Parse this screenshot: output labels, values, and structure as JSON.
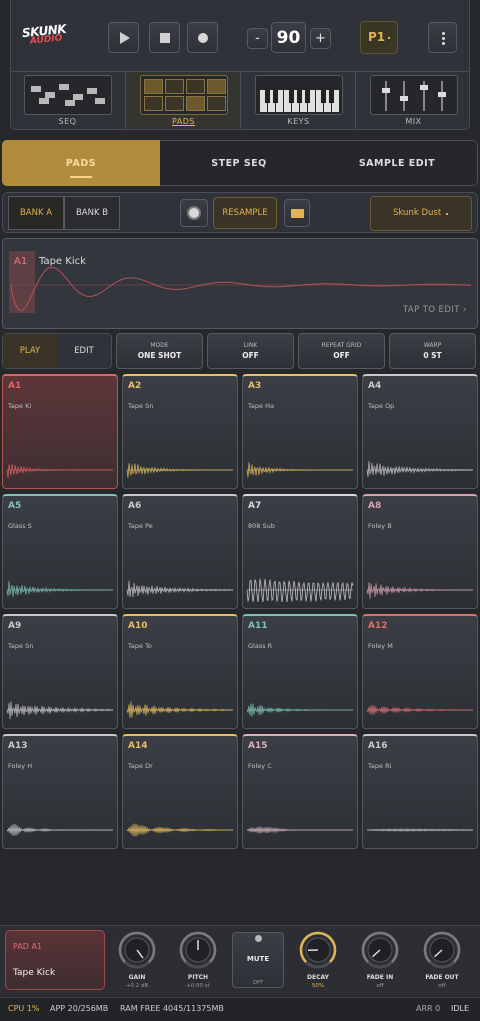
{
  "header": {
    "logo_top": "SKUNK",
    "logo_bottom": "AUDIO",
    "minus": "-",
    "tempo": "90",
    "plus": "+",
    "pattern": "P1"
  },
  "views": [
    "SEQ",
    "PADS",
    "KEYS",
    "MIX"
  ],
  "tabs": [
    "PADS",
    "STEP SEQ",
    "SAMPLE EDIT"
  ],
  "banks": [
    "BANK A",
    "BANK B"
  ],
  "resample": "RESAMPLE",
  "kit": "Skunk Dust",
  "waveform": {
    "pad": "A1",
    "name": "Tape Kick",
    "hint": "TAP TO EDIT ›"
  },
  "modes": [
    "PLAY",
    "EDIT"
  ],
  "params": [
    {
      "label": "MODE",
      "value": "ONE SHOT"
    },
    {
      "label": "LINK",
      "value": "OFF"
    },
    {
      "label": "REPEAT GRID",
      "value": "OFF"
    },
    {
      "label": "WARP",
      "value": "0 ST"
    }
  ],
  "pads": [
    {
      "id": "A1",
      "name": "Tape Ki",
      "color": "#e06565"
    },
    {
      "id": "A2",
      "name": "Tape Sn",
      "color": "#e8c062"
    },
    {
      "id": "A3",
      "name": "Tape Ha",
      "color": "#e8c062"
    },
    {
      "id": "A4",
      "name": "Tape Op",
      "color": "#c9c9c9"
    },
    {
      "id": "A5",
      "name": "Glass S",
      "color": "#7ec4b6"
    },
    {
      "id": "A6",
      "name": "Tape Pe",
      "color": "#c9c9c9"
    },
    {
      "id": "A7",
      "name": "808 Sub",
      "color": "#d8d8d8"
    },
    {
      "id": "A8",
      "name": "Foley B",
      "color": "#d9a2b2"
    },
    {
      "id": "A9",
      "name": "Tape Sn",
      "color": "#c9c9c9"
    },
    {
      "id": "A10",
      "name": "Tape To",
      "color": "#e8c062"
    },
    {
      "id": "A11",
      "name": "Glass R",
      "color": "#7ec4b6"
    },
    {
      "id": "A12",
      "name": "Foley M",
      "color": "#e07070"
    },
    {
      "id": "A13",
      "name": "Foley H",
      "color": "#c9c9c9"
    },
    {
      "id": "A14",
      "name": "Tape Dr",
      "color": "#e8c062"
    },
    {
      "id": "A15",
      "name": "Foley C",
      "color": "#d9b2bc"
    },
    {
      "id": "A16",
      "name": "Tape Ri",
      "color": "#c9c9c9"
    }
  ],
  "selected": {
    "pad": "PAD A1",
    "name": "Tape Kick"
  },
  "knobs": [
    {
      "label": "GAIN",
      "value": "+0.2 dB"
    },
    {
      "label": "PITCH",
      "value": "+0.00 st"
    },
    {
      "label": "MUTE",
      "value": "OFF"
    },
    {
      "label": "DECAY",
      "value": "50%"
    },
    {
      "label": "FADE IN",
      "value": "off"
    },
    {
      "label": "FADE OUT",
      "value": "off"
    }
  ],
  "status": {
    "cpu": "CPU 1%",
    "app": "APP 20/256MB",
    "ram": "RAM FREE 4045/11375MB",
    "arr": "ARR 0",
    "state": "IDLE"
  }
}
